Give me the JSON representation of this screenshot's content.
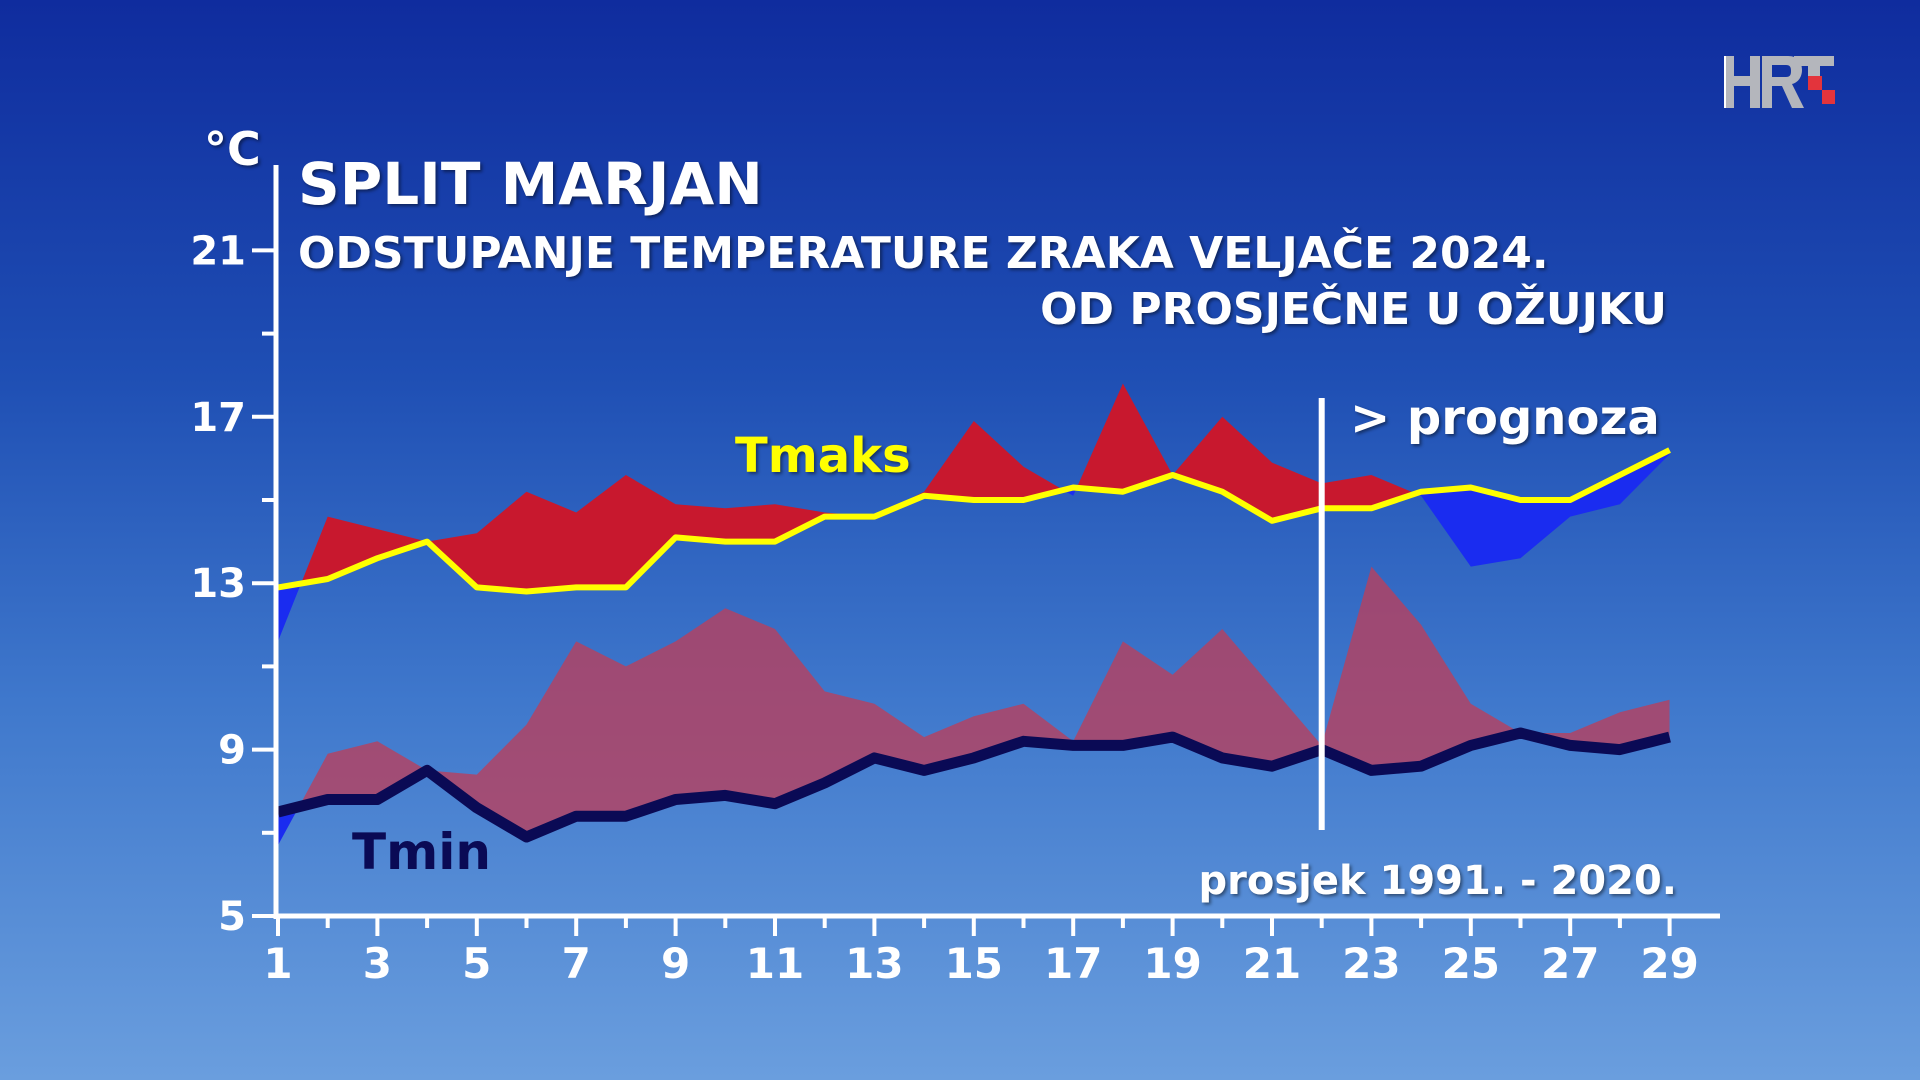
{
  "chart_data": {
    "type": "area",
    "title": "SPLIT MARJAN",
    "subtitle": [
      "ODSTUPANJE TEMPERATURE ZRAKA VELJAČE 2024.",
      "OD PROSJEČNE U OŽUJKU"
    ],
    "ylabel": "°C",
    "ylim": [
      5,
      23
    ],
    "yticks": [
      5,
      9,
      13,
      17,
      21
    ],
    "xlim": [
      1,
      29
    ],
    "xticks": [
      1,
      3,
      5,
      7,
      9,
      11,
      13,
      15,
      17,
      19,
      21,
      23,
      25,
      27,
      29
    ],
    "x": [
      1,
      2,
      3,
      4,
      5,
      6,
      7,
      8,
      9,
      10,
      11,
      12,
      13,
      14,
      15,
      16,
      17,
      18,
      19,
      20,
      21,
      22,
      23,
      24,
      25,
      26,
      27,
      28,
      29
    ],
    "series": [
      {
        "name": "Tmaks",
        "role": "average",
        "color": "#ffff00",
        "values": [
          12.9,
          13.1,
          13.6,
          14.0,
          12.9,
          12.8,
          12.9,
          12.9,
          14.1,
          14.0,
          14.0,
          14.6,
          14.6,
          15.1,
          15.0,
          15.0,
          15.3,
          15.2,
          15.6,
          15.2,
          14.5,
          14.8,
          14.8,
          15.2,
          15.3,
          15.0,
          15.0,
          15.6,
          16.2
        ]
      },
      {
        "role": "actual-max",
        "values": [
          11.6,
          14.6,
          14.3,
          14.0,
          14.2,
          15.2,
          14.7,
          15.6,
          14.9,
          14.8,
          14.9,
          14.7,
          14.6,
          15.2,
          16.9,
          15.8,
          15.1,
          17.8,
          15.6,
          17.0,
          15.9,
          15.4,
          15.6,
          15.1,
          13.4,
          13.6,
          14.6,
          14.9,
          16.1
        ]
      },
      {
        "name": "Tmin",
        "role": "average",
        "color": "#0a0a55",
        "values": [
          7.5,
          7.8,
          7.8,
          8.5,
          7.6,
          6.9,
          7.4,
          7.4,
          7.8,
          7.9,
          7.7,
          8.2,
          8.8,
          8.5,
          8.8,
          9.2,
          9.1,
          9.1,
          9.3,
          8.8,
          8.6,
          9.0,
          8.5,
          8.6,
          9.1,
          9.4,
          9.1,
          9.0,
          9.3
        ]
      },
      {
        "role": "actual-min",
        "values": [
          6.7,
          8.9,
          9.2,
          8.5,
          8.4,
          9.6,
          11.6,
          11.0,
          11.6,
          12.4,
          11.9,
          10.4,
          10.1,
          9.3,
          9.8,
          10.1,
          9.2,
          11.6,
          10.8,
          11.9,
          10.5,
          9.1,
          13.4,
          12.0,
          10.1,
          9.4,
          9.4,
          9.9,
          10.2
        ]
      }
    ],
    "colors": {
      "above_max": "#c8182e",
      "above_min": "#b8405e",
      "below": "#1a2cf0"
    },
    "forecast_from_day": 22,
    "annotations": {
      "forecast": "> prognoza",
      "average_period": "prosjek 1991. - 2020."
    }
  },
  "logo": "HRT"
}
